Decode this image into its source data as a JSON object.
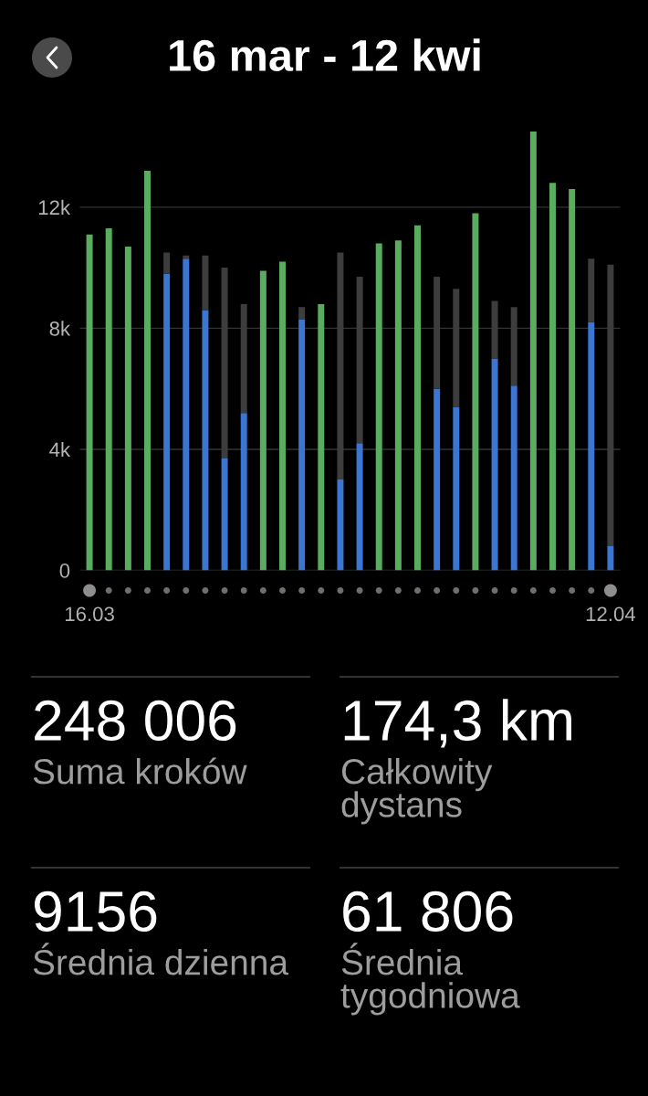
{
  "chart_data": [
    {
      "type": "bar",
      "title": "16 mar - 12 kwi",
      "categories": [
        "16.03",
        null,
        null,
        null,
        null,
        null,
        null,
        null,
        null,
        null,
        null,
        null,
        null,
        null,
        null,
        null,
        null,
        null,
        null,
        null,
        null,
        null,
        null,
        null,
        null,
        null,
        null,
        "12.04"
      ],
      "stacked": true,
      "series": [
        {
          "colors": [
            "#5aad5e",
            "#5aad5e",
            "#5aad5e",
            "#5aad5e",
            "#3b76d2",
            "#3b76d2",
            "#3b76d2",
            "#3b76d2",
            "#3b76d2",
            "#5aad5e",
            "#5aad5e",
            "#3b76d2",
            "#5aad5e",
            "#3b76d2",
            "#3b76d2",
            "#5aad5e",
            "#5aad5e",
            "#5aad5e",
            "#3b76d2",
            "#3b76d2",
            "#5aad5e",
            "#3b76d2",
            "#3b76d2",
            "#5aad5e",
            "#5aad5e",
            "#5aad5e",
            "#3b76d2",
            "#3b76d2"
          ],
          "values": [
            11100,
            11300,
            10700,
            13200,
            9800,
            10300,
            8600,
            3700,
            5200,
            9900,
            10200,
            8300,
            8800,
            3000,
            4200,
            10800,
            10900,
            11400,
            6000,
            5400,
            11800,
            7000,
            6100,
            14500,
            12800,
            12600,
            8200,
            800
          ]
        },
        {
          "color": "#3d3d3d",
          "values": [
            null,
            null,
            null,
            null,
            700,
            100,
            1800,
            6300,
            3600,
            null,
            null,
            400,
            null,
            7500,
            5500,
            null,
            null,
            null,
            3700,
            3900,
            null,
            1900,
            2600,
            null,
            null,
            null,
            2100,
            9300
          ]
        }
      ],
      "ylim": [
        0,
        14500
      ],
      "yticks": [
        0,
        {
          "value": 4000,
          "label": "4k"
        },
        {
          "value": 8000,
          "label": "8k"
        },
        {
          "value": 12000,
          "label": "12k"
        }
      ],
      "grid": "y"
    },
    {
      "type": "other",
      "annotations": [
        "248 006",
        "Suma kroków",
        "174,3 km",
        "Całkowity dystans",
        "9156",
        "Średnia dzienna",
        "61 806",
        "Średnia tygodniowa"
      ]
    }
  ]
}
